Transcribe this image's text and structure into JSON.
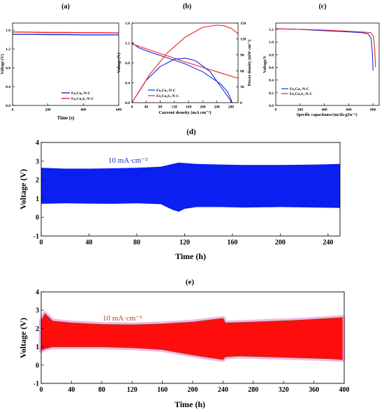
{
  "colors": {
    "blue": "#1a2bd6",
    "red": "#e8222a",
    "red_fill": "#ff0d0d",
    "red_edge": "#a3421a",
    "pink_halo": "#f2b6e6",
    "fill_blue": "#0b1ff0",
    "annot_blue": "#1f2fc4",
    "annot_brown": "#a8441c"
  },
  "chart_data": [
    {
      "panel_label": "(a)",
      "type": "line",
      "title": "",
      "xlabel": "Time (s)",
      "ylabel": "Voltage (V)",
      "xlim": [
        0,
        600
      ],
      "ylim": [
        0.0,
        1.75
      ],
      "xticks": [
        "0",
        "200",
        "400",
        "600"
      ],
      "yticks": [
        "0.0",
        "0.4",
        "0.8",
        "1.2",
        "1.6"
      ],
      "legend_position": "bottom-right",
      "series": [
        {
          "name": "Fe₁Cu₁-N-C",
          "color": "#1a2bd6",
          "x": [
            0,
            100,
            200,
            300,
            400,
            500,
            600
          ],
          "values": [
            1.51,
            1.51,
            1.505,
            1.505,
            1.5,
            1.5,
            1.5
          ]
        },
        {
          "name": "Fe₁Cu₁S₁-N-C",
          "color": "#e8222a",
          "x": [
            0,
            100,
            200,
            300,
            400,
            500,
            600
          ],
          "values": [
            1.56,
            1.555,
            1.55,
            1.55,
            1.545,
            1.545,
            1.54
          ]
        }
      ]
    },
    {
      "panel_label": "(b)",
      "type": "line",
      "title": "",
      "xlabel": "Current density (mA cm⁻²)",
      "ylabel": "Voltage (V)",
      "y2label": "Power density (mW cm⁻²)",
      "xlim": [
        0,
        300
      ],
      "ylim": [
        0.0,
        1.6
      ],
      "y2lim": [
        0,
        150
      ],
      "xticks": [
        "0",
        "40",
        "80",
        "120",
        "160",
        "200",
        "240",
        "280"
      ],
      "yticks": [
        "0.0",
        "0.4",
        "0.8",
        "1.2",
        "1.6"
      ],
      "y2ticks": [
        "0",
        "30",
        "60",
        "90",
        "120",
        "150"
      ],
      "legend_position": "bottom-left",
      "series": [
        {
          "name": "Fe₁Cu₁-N-C",
          "color": "#1a2bd6",
          "axis": "left",
          "x": [
            0,
            20,
            50,
            100,
            150,
            200,
            250,
            270,
            278,
            283
          ],
          "values": [
            1.2,
            1.1,
            1.02,
            0.9,
            0.78,
            0.62,
            0.38,
            0.22,
            0.1,
            0.0
          ]
        },
        {
          "name": "Fe₁Cu₁S₁-N-C",
          "color": "#e8222a",
          "axis": "left",
          "x": [
            0,
            50,
            100,
            150,
            200,
            250,
            300
          ],
          "values": [
            1.18,
            1.06,
            0.94,
            0.82,
            0.71,
            0.6,
            0.49
          ]
        },
        {
          "name": "Fe₁Cu₁-N-C power",
          "color": "#1a2bd6",
          "axis": "right",
          "x": [
            0,
            40,
            80,
            120,
            150,
            180,
            220,
            260,
            283
          ],
          "values": [
            0,
            42,
            68,
            82,
            84,
            79,
            59,
            22,
            0
          ]
        },
        {
          "name": "Fe₁Cu₁S₁-N-C power",
          "color": "#e8222a",
          "axis": "right",
          "x": [
            0,
            50,
            100,
            150,
            200,
            240,
            260,
            280,
            300
          ],
          "values": [
            0,
            53,
            94,
            123,
            142,
            146,
            145,
            140,
            130
          ]
        }
      ]
    },
    {
      "panel_label": "(c)",
      "type": "line",
      "title": "",
      "xlabel": "Specific capacitance/(mAh·gZn⁻¹)",
      "ylabel": "Voltage/V",
      "xlim": [
        0,
        850
      ],
      "ylim": [
        0.0,
        1.3
      ],
      "xticks": [
        "0",
        "200",
        "400",
        "600",
        "800"
      ],
      "yticks": [
        "0.0",
        "0.2",
        "0.4",
        "0.6",
        "0.8",
        "1.0",
        "1.2"
      ],
      "legend_position": "bottom-left",
      "series": [
        {
          "name": "Fe₁Cu₁-N-C",
          "color": "#1a2bd6",
          "x": [
            0,
            200,
            400,
            600,
            700,
            760,
            785,
            795,
            800
          ],
          "values": [
            1.21,
            1.2,
            1.18,
            1.16,
            1.15,
            1.13,
            1.05,
            0.8,
            0.55
          ]
        },
        {
          "name": "Fe₁Cu₁S₁-N-C",
          "color": "#e8222a",
          "x": [
            0,
            200,
            400,
            600,
            700,
            780,
            805,
            815,
            820
          ],
          "values": [
            1.21,
            1.2,
            1.19,
            1.17,
            1.16,
            1.15,
            1.08,
            0.85,
            0.6
          ]
        }
      ]
    },
    {
      "panel_label": "(d)",
      "type": "area",
      "title": "",
      "annotation": "10 mA·cm⁻²",
      "xlabel": "Time (h)",
      "ylabel": "Voltage (V)",
      "xlim": [
        0,
        250
      ],
      "ylim": [
        -1,
        4
      ],
      "xticks": [
        "0",
        "40",
        "80",
        "120",
        "160",
        "200",
        "240"
      ],
      "yticks": [
        "-1",
        "0",
        "1",
        "2",
        "3",
        "4"
      ],
      "color": "#0b1ff0",
      "x": [
        0,
        20,
        40,
        60,
        80,
        100,
        105,
        110,
        115,
        120,
        130,
        150,
        170,
        200,
        230,
        250
      ],
      "upper": [
        2.65,
        2.6,
        2.6,
        2.62,
        2.65,
        2.7,
        2.78,
        2.85,
        2.92,
        2.9,
        2.85,
        2.82,
        2.8,
        2.8,
        2.82,
        2.85
      ],
      "lower": [
        0.72,
        0.75,
        0.73,
        0.72,
        0.75,
        0.7,
        0.55,
        0.4,
        0.3,
        0.45,
        0.55,
        0.55,
        0.52,
        0.55,
        0.52,
        0.5
      ]
    },
    {
      "panel_label": "(e)",
      "type": "area",
      "title": "",
      "annotation": "10 mA·cm⁻²",
      "xlabel": "Time (h)",
      "ylabel": "Voltage (V)",
      "xlim": [
        0,
        400
      ],
      "ylim": [
        -1,
        4
      ],
      "xticks": [
        "0",
        "40",
        "80",
        "120",
        "160",
        "200",
        "240",
        "280",
        "320",
        "360",
        "400"
      ],
      "yticks": [
        "-1",
        "0",
        "1",
        "2",
        "3",
        "4"
      ],
      "color": "#ff0d0d",
      "x": [
        0,
        5,
        15,
        40,
        80,
        120,
        160,
        200,
        240,
        243,
        260,
        300,
        340,
        380,
        398
      ],
      "upper": [
        2.4,
        2.8,
        2.4,
        2.3,
        2.22,
        2.2,
        2.25,
        2.35,
        2.55,
        2.3,
        2.32,
        2.38,
        2.45,
        2.55,
        2.6
      ],
      "lower": [
        0.8,
        0.9,
        1.0,
        1.0,
        1.0,
        0.95,
        0.85,
        0.55,
        0.3,
        0.45,
        0.5,
        0.45,
        0.4,
        0.35,
        0.3
      ]
    }
  ]
}
